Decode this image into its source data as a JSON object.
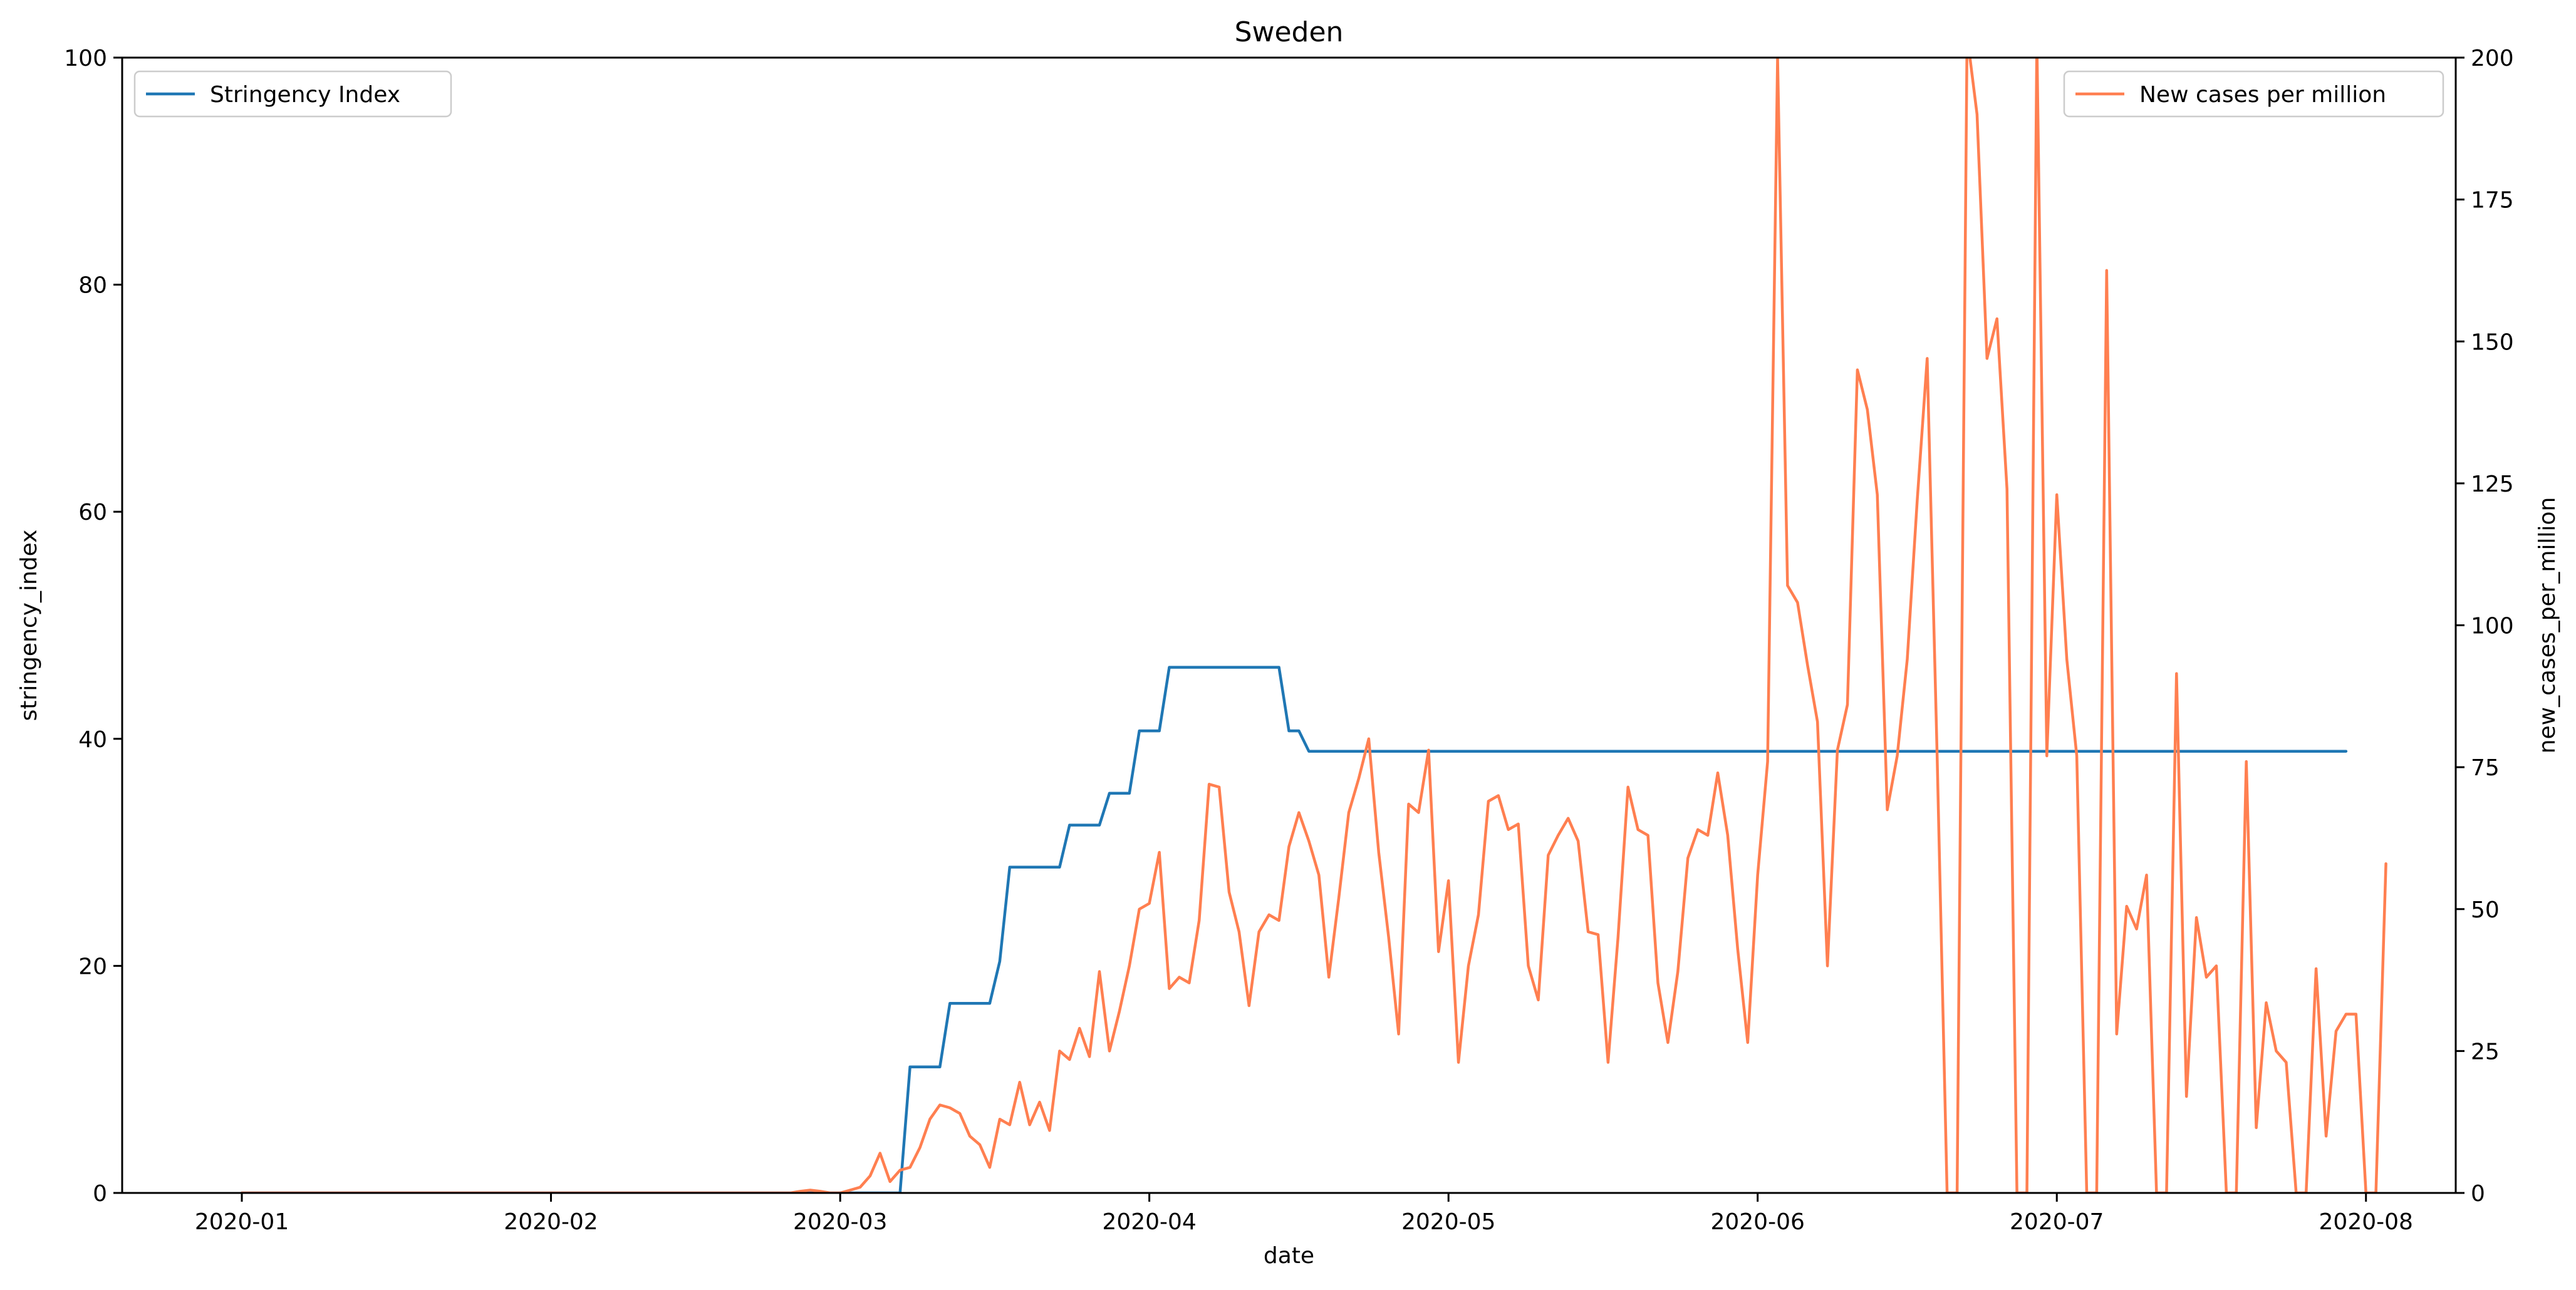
{
  "chart_data": {
    "type": "line",
    "title": "Sweden",
    "xlabel": "date",
    "ylabel_left": "stringency_index",
    "ylabel_right": "new_cases_per_million",
    "x_ticks": [
      "2020-01",
      "2020-02",
      "2020-03",
      "2020-04",
      "2020-05",
      "2020-06",
      "2020-07",
      "2020-08"
    ],
    "x_tick_days": [
      0,
      31,
      60,
      91,
      121,
      152,
      182,
      213
    ],
    "xlim_days": [
      -12,
      222
    ],
    "ylim_left": [
      0,
      100
    ],
    "yticks_left": [
      "0",
      "20",
      "40",
      "60",
      "80",
      "100"
    ],
    "ylim_right": [
      0,
      200
    ],
    "yticks_right": [
      "0",
      "25",
      "50",
      "75",
      "100",
      "125",
      "150",
      "175",
      "200"
    ],
    "legend_left": {
      "label": "Stringency Index",
      "placement": "upper left"
    },
    "legend_right": {
      "label": "New cases per million",
      "placement": "upper right"
    },
    "colors": {
      "stringency": "#1f77b4",
      "cases": "#ff7f50"
    },
    "series": [
      {
        "name": "Stringency Index",
        "axis": "left",
        "x_days": [
          0,
          66,
          67,
          70,
          71,
          75,
          76,
          77,
          78,
          82,
          83,
          86,
          87,
          89,
          90,
          91,
          92,
          93,
          94,
          104,
          105,
          106,
          107,
          211
        ],
        "values": [
          0,
          0,
          11.1,
          11.1,
          16.7,
          16.7,
          20.4,
          28.7,
          28.7,
          28.7,
          32.4,
          32.4,
          35.2,
          35.2,
          40.7,
          40.7,
          40.7,
          46.3,
          46.3,
          46.3,
          40.7,
          40.7,
          38.9,
          38.9
        ]
      },
      {
        "name": "New cases per million",
        "axis": "right",
        "x_days": [
          0,
          55,
          56,
          57,
          58,
          59,
          60,
          61,
          62,
          63,
          64,
          65,
          66,
          67,
          68,
          69,
          70,
          71,
          72,
          73,
          74,
          75,
          76,
          77,
          78,
          79,
          80,
          81,
          82,
          83,
          84,
          85,
          86,
          87,
          88,
          89,
          90,
          91,
          92,
          93,
          94,
          95,
          96,
          97,
          98,
          99,
          100,
          101,
          102,
          103,
          104,
          105,
          106,
          107,
          108,
          109,
          110,
          111,
          112,
          113,
          114,
          115,
          116,
          117,
          118,
          119,
          120,
          121,
          122,
          123,
          124,
          125,
          126,
          127,
          128,
          129,
          130,
          131,
          132,
          133,
          134,
          135,
          136,
          137,
          138,
          139,
          140,
          141,
          142,
          143,
          144,
          145,
          146,
          147,
          148,
          149,
          150,
          151,
          152,
          153,
          154,
          155,
          156,
          157,
          158,
          159,
          160,
          161,
          162,
          163,
          164,
          165,
          166,
          167,
          168,
          169,
          170,
          171,
          172,
          173,
          174,
          175,
          176,
          177,
          178,
          179,
          180,
          181,
          182,
          183,
          184,
          185,
          186,
          187,
          188,
          189,
          190,
          191,
          192,
          193,
          194,
          195,
          196,
          197,
          198,
          199,
          200,
          201,
          202,
          203,
          204,
          205,
          206,
          207,
          208,
          209,
          210,
          211,
          212,
          213,
          214,
          215
        ],
        "values": [
          0,
          0,
          0.3,
          0.5,
          0.3,
          0,
          0,
          0.5,
          1,
          3,
          7,
          2,
          4,
          4.5,
          8,
          13,
          15.5,
          15,
          14,
          10,
          8.5,
          4.5,
          13,
          12,
          19.5,
          12,
          16,
          11,
          25,
          23.5,
          29,
          24,
          39,
          25,
          32,
          40,
          50,
          51,
          60,
          36,
          38,
          37,
          48,
          72,
          71.5,
          53,
          46,
          33,
          46,
          49,
          48,
          61,
          67,
          62,
          56,
          38,
          52,
          67,
          73,
          80,
          60,
          45,
          28,
          68.5,
          67,
          78,
          42.5,
          55,
          23,
          40,
          49,
          69,
          70,
          64,
          65,
          40,
          34,
          59.5,
          63,
          66,
          62,
          46,
          45.5,
          23,
          45,
          71.5,
          64,
          63,
          37,
          26.5,
          39,
          59,
          64,
          63,
          74,
          63,
          43,
          26.5,
          56,
          76,
          200,
          107,
          104,
          93,
          83,
          40,
          78,
          86,
          145,
          138,
          123,
          67.5,
          77,
          94,
          122,
          147,
          77,
          0,
          0,
          204,
          190,
          147,
          154,
          124,
          0,
          0,
          203,
          77,
          123,
          94,
          77,
          0,
          0,
          162.5,
          28,
          50.5,
          46.5,
          56,
          0,
          0,
          91.5,
          17,
          48.5,
          38,
          40,
          0,
          0,
          76,
          11.5,
          33.5,
          25,
          23,
          0,
          0,
          39.5,
          10,
          28.5,
          31.5,
          31.5,
          0,
          0,
          58
        ]
      }
    ]
  }
}
